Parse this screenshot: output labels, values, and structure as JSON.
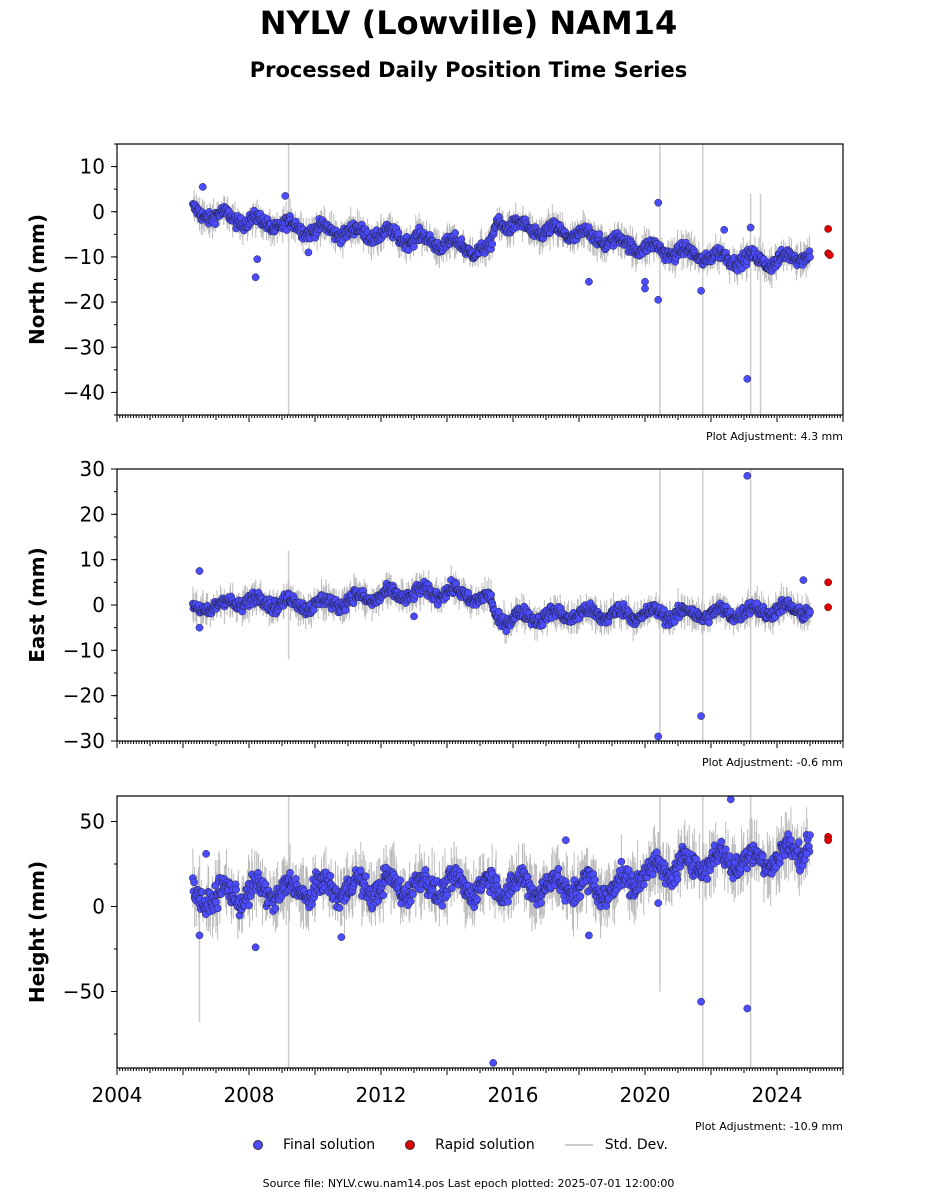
{
  "header": {
    "title": "NYLV (Lowville) NAM14",
    "subtitle": "Processed Daily Position Time Series"
  },
  "legend": {
    "final_label": "Final solution",
    "rapid_label": "Rapid solution",
    "std_label": "Std. Dev.",
    "final_color": "#4c4cff",
    "rapid_color": "#e00000",
    "std_color": "#cccccc"
  },
  "footer": {
    "source": "Source file: NYLV.cwu.nam14.pos  Last epoch plotted: 2025-07-01 12:00:00"
  },
  "chart_data": [
    {
      "type": "scatter",
      "ylabel": "North (mm)",
      "adjustment": "Plot Adjustment: 4.3 mm",
      "xlim": [
        2004,
        2026
      ],
      "ylim": [
        -45,
        15
      ],
      "yticks": [
        10,
        0,
        -10,
        -20,
        -30,
        -40
      ],
      "xticks": [
        2004,
        2008,
        2012,
        2016,
        2020,
        2024
      ],
      "show_xticklabels": false,
      "final_trend": [
        [
          2006.3,
          0
        ],
        [
          2008.0,
          -2
        ],
        [
          2010.0,
          -4
        ],
        [
          2012.0,
          -5
        ],
        [
          2014.0,
          -7
        ],
        [
          2015.3,
          -9
        ],
        [
          2015.5,
          -2
        ],
        [
          2016.5,
          -4
        ],
        [
          2018.0,
          -5
        ],
        [
          2020.0,
          -8
        ],
        [
          2022.0,
          -10
        ],
        [
          2024.0,
          -11
        ],
        [
          2025.0,
          -9
        ]
      ],
      "noise": 1.8,
      "outliers": [
        [
          2006.6,
          5.5
        ],
        [
          2008.2,
          -14.5
        ],
        [
          2008.25,
          -10.5
        ],
        [
          2009.1,
          3.5
        ],
        [
          2009.8,
          -9
        ],
        [
          2018.3,
          -15.5
        ],
        [
          2020.0,
          -15.5
        ],
        [
          2020.0,
          -17
        ],
        [
          2020.4,
          -19.5
        ],
        [
          2020.4,
          2
        ],
        [
          2021.7,
          -17.5
        ],
        [
          2022.4,
          -4
        ],
        [
          2023.1,
          -37
        ],
        [
          2023.2,
          -3.5
        ]
      ],
      "rapid": [
        [
          2025.55,
          -3.8
        ],
        [
          2025.55,
          -9.2
        ],
        [
          2025.6,
          -9.6
        ]
      ],
      "std_spikes": [
        [
          2009.2,
          -45,
          15
        ],
        [
          2020.45,
          -45,
          15
        ],
        [
          2021.75,
          -45,
          15
        ],
        [
          2023.2,
          -45,
          4
        ],
        [
          2023.5,
          -45,
          4
        ]
      ]
    },
    {
      "type": "scatter",
      "ylabel": "East (mm)",
      "adjustment": "Plot Adjustment: -0.6 mm",
      "xlim": [
        2004,
        2026
      ],
      "ylim": [
        -30,
        30
      ],
      "yticks": [
        30,
        20,
        10,
        0,
        -10,
        -20,
        -30
      ],
      "xticks": [
        2004,
        2008,
        2012,
        2016,
        2020,
        2024
      ],
      "show_xticklabels": false,
      "final_trend": [
        [
          2006.3,
          -1
        ],
        [
          2008.0,
          1
        ],
        [
          2010.0,
          0
        ],
        [
          2012.0,
          2
        ],
        [
          2014.0,
          3
        ],
        [
          2015.3,
          1
        ],
        [
          2015.5,
          -3
        ],
        [
          2018.0,
          -2
        ],
        [
          2020.0,
          -2
        ],
        [
          2022.0,
          -2
        ],
        [
          2024.0,
          -1
        ],
        [
          2025.0,
          -1
        ]
      ],
      "noise": 1.8,
      "outliers": [
        [
          2006.5,
          7.5
        ],
        [
          2006.5,
          -5
        ],
        [
          2013.0,
          -2.5
        ],
        [
          2020.4,
          -29
        ],
        [
          2021.7,
          -24.5
        ],
        [
          2023.1,
          28.5
        ],
        [
          2024.8,
          5.5
        ]
      ],
      "rapid": [
        [
          2025.55,
          5
        ],
        [
          2025.55,
          -0.5
        ]
      ],
      "std_spikes": [
        [
          2009.2,
          -12,
          12
        ],
        [
          2020.45,
          -30,
          30
        ],
        [
          2021.75,
          -30,
          30
        ],
        [
          2023.2,
          -30,
          30
        ]
      ]
    },
    {
      "type": "scatter",
      "ylabel": "Height (mm)",
      "adjustment": "Plot Adjustment: -10.9 mm",
      "xlim": [
        2004,
        2026
      ],
      "ylim": [
        -95,
        65
      ],
      "yticks": [
        50,
        0,
        -50
      ],
      "xticks": [
        2004,
        2008,
        2012,
        2016,
        2020,
        2024
      ],
      "xticklabels": [
        "2004",
        "2008",
        "2012",
        "2016",
        "2020",
        "2024"
      ],
      "show_xticklabels": true,
      "final_trend": [
        [
          2006.3,
          5
        ],
        [
          2008.0,
          8
        ],
        [
          2010.0,
          10
        ],
        [
          2012.0,
          12
        ],
        [
          2014.0,
          12
        ],
        [
          2016.0,
          12
        ],
        [
          2018.0,
          12
        ],
        [
          2019.0,
          10
        ],
        [
          2020.0,
          20
        ],
        [
          2022.0,
          27
        ],
        [
          2024.0,
          28
        ],
        [
          2025.0,
          38
        ]
      ],
      "noise": 9,
      "outliers": [
        [
          2006.5,
          -17
        ],
        [
          2006.7,
          31
        ],
        [
          2008.2,
          -24
        ],
        [
          2010.8,
          -18
        ],
        [
          2015.4,
          -92
        ],
        [
          2017.6,
          39
        ],
        [
          2018.3,
          -17
        ],
        [
          2020.4,
          2
        ],
        [
          2021.7,
          -56
        ],
        [
          2022.6,
          63
        ],
        [
          2023.1,
          -60
        ],
        [
          2024.9,
          31
        ]
      ],
      "rapid": [
        [
          2025.55,
          41
        ],
        [
          2025.55,
          39
        ]
      ],
      "std_spikes": [
        [
          2006.5,
          -68,
          30
        ],
        [
          2009.2,
          -95,
          65
        ],
        [
          2020.45,
          -50,
          65
        ],
        [
          2021.75,
          -95,
          65
        ],
        [
          2023.2,
          -95,
          65
        ]
      ]
    }
  ]
}
